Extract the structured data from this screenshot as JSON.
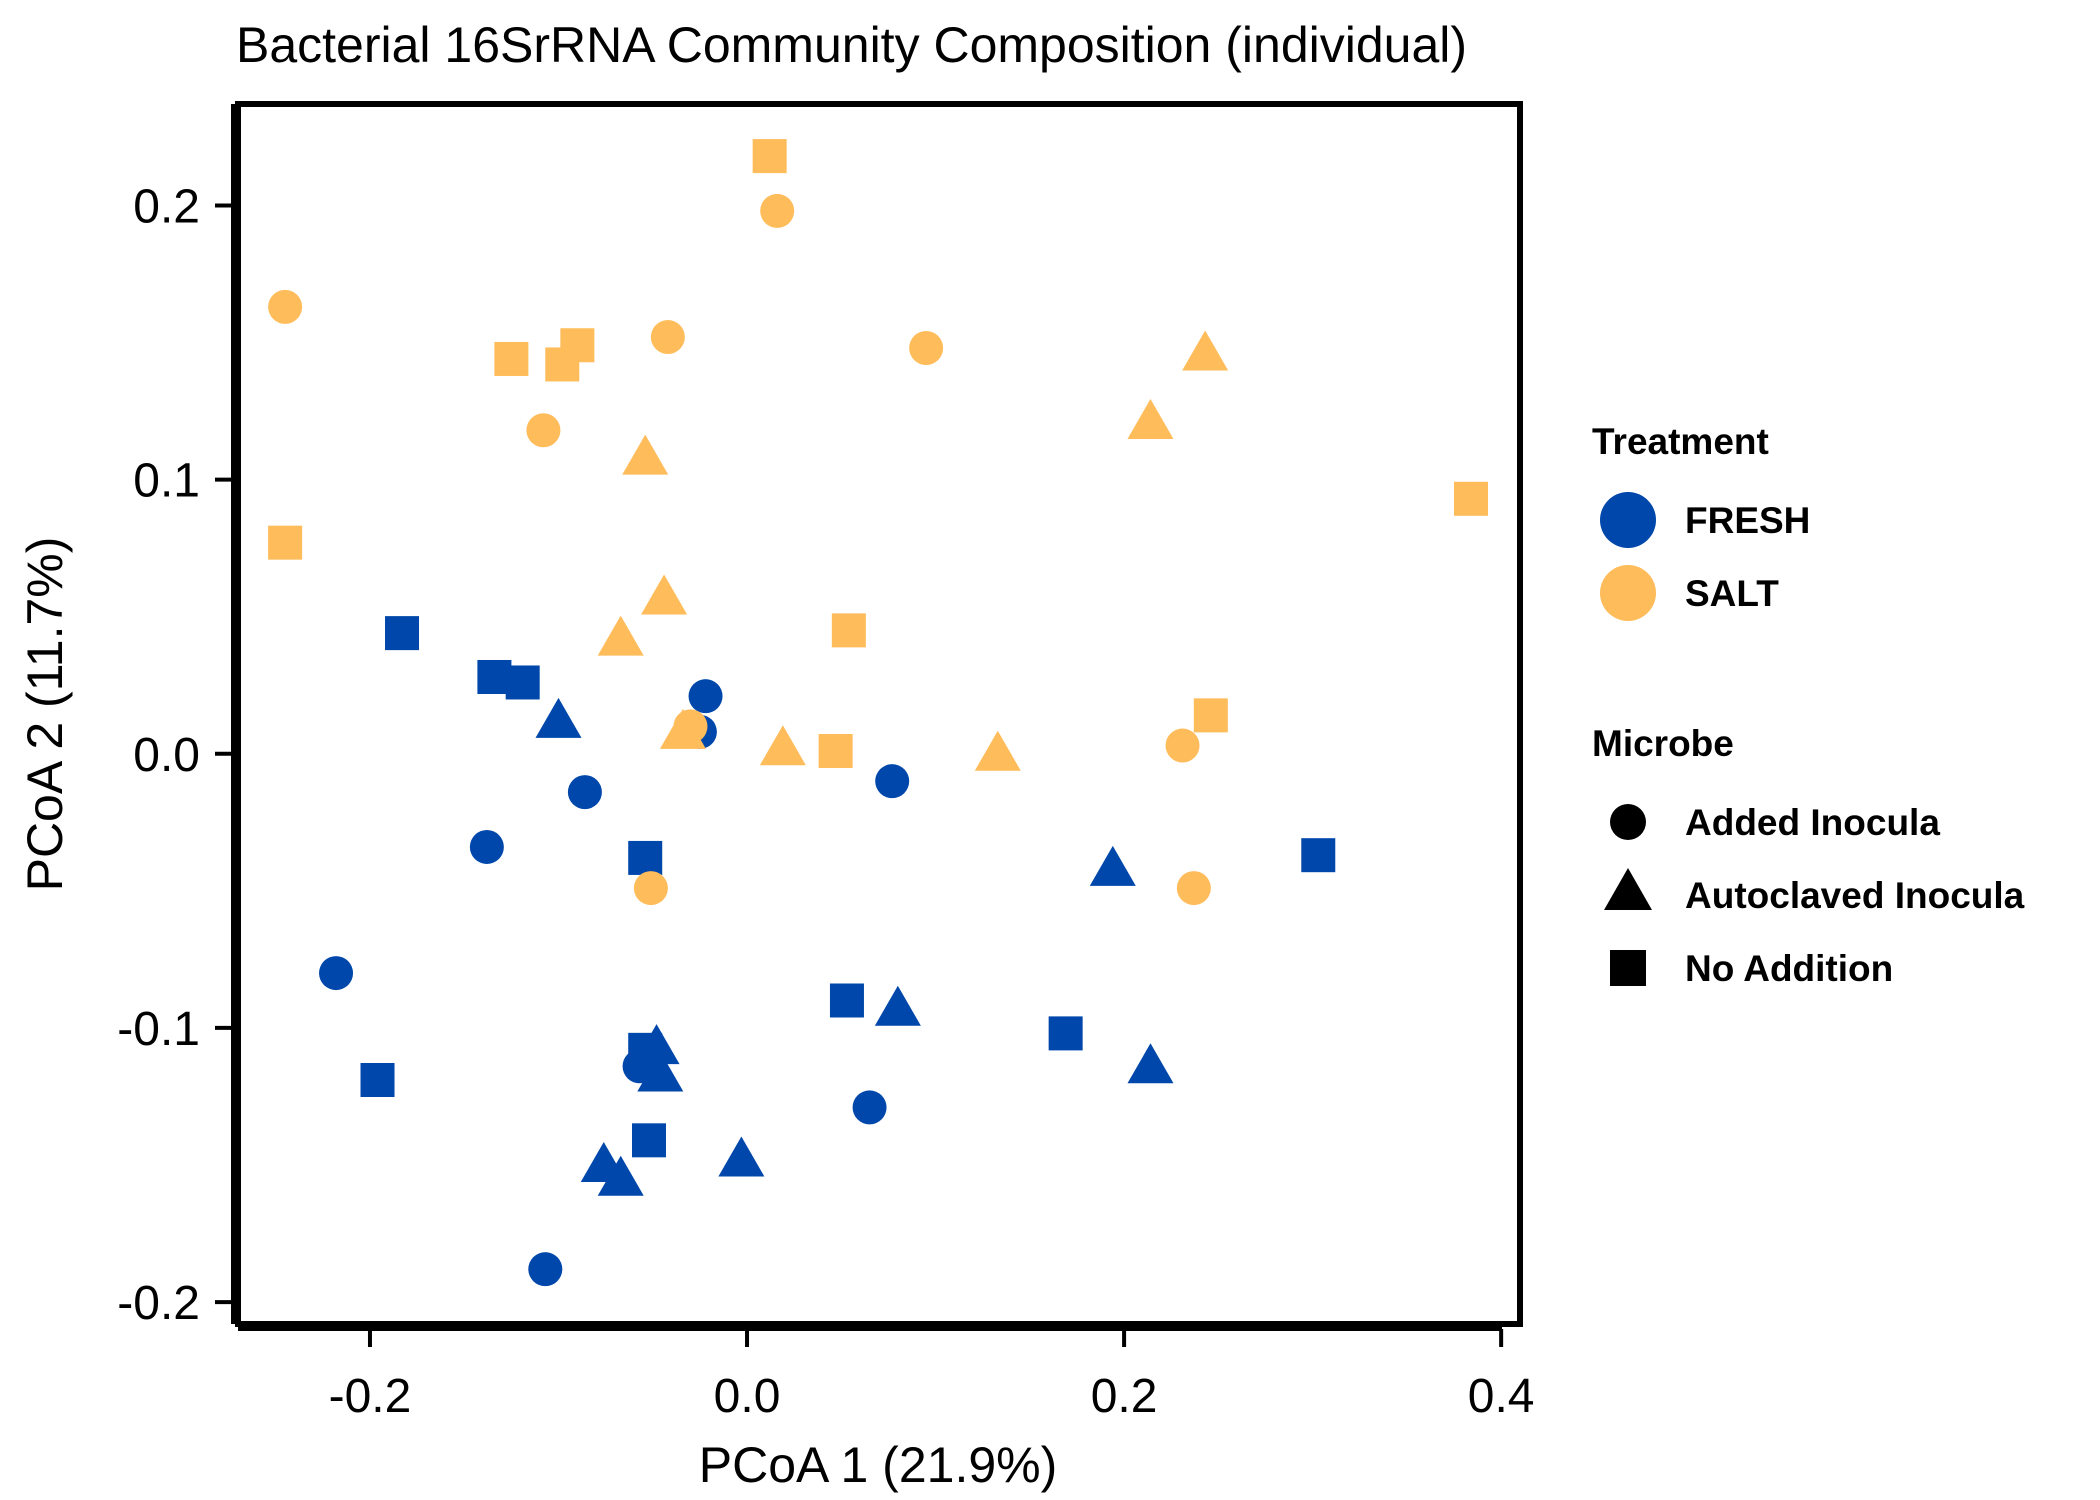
{
  "chart_data": {
    "type": "scatter",
    "title": "Bacterial 16SrRNA Community Composition (individual)",
    "xlabel": "PCoA 1 (21.9%)",
    "ylabel": "PCoA 2 (11.7%)",
    "xlim": [
      -0.27,
      0.41
    ],
    "ylim": [
      -0.208,
      0.237
    ],
    "x_ticks": [
      -0.2,
      0.0,
      0.2,
      0.4
    ],
    "x_tick_labels": [
      "-0.2",
      "0.0",
      "0.2",
      "0.4"
    ],
    "y_ticks": [
      -0.2,
      -0.1,
      0.0,
      0.1,
      0.2
    ],
    "y_tick_labels": [
      "-0.2",
      "-0.1",
      "0.0",
      "0.1",
      "0.2"
    ],
    "grid": false,
    "legend_position": "right",
    "color_legend": {
      "title": "Treatment",
      "entries": [
        {
          "name": "FRESH",
          "color": "#0047ab"
        },
        {
          "name": "SALT",
          "color": "#ffbc5a"
        }
      ]
    },
    "shape_legend": {
      "title": "Microbe",
      "entries": [
        {
          "name": "Added Inocula",
          "shape": "circle"
        },
        {
          "name": "Autoclaved Inocula",
          "shape": "triangle"
        },
        {
          "name": "No Addition",
          "shape": "square"
        }
      ]
    },
    "series": [
      {
        "treatment": "FRESH",
        "microbe": "Added Inocula",
        "color": "#0047ab",
        "shape": "circle",
        "points": [
          [
            -0.218,
            -0.08
          ],
          [
            -0.138,
            -0.034
          ],
          [
            -0.086,
            -0.014
          ],
          [
            -0.022,
            0.021
          ],
          [
            -0.025,
            0.008
          ],
          [
            0.077,
            -0.01
          ],
          [
            -0.057,
            -0.114
          ],
          [
            0.065,
            -0.129
          ],
          [
            -0.107,
            -0.188
          ]
        ]
      },
      {
        "treatment": "FRESH",
        "microbe": "Autoclaved Inocula",
        "color": "#0047ab",
        "shape": "triangle",
        "points": [
          [
            -0.1,
            0.012
          ],
          [
            0.194,
            -0.042
          ],
          [
            0.08,
            -0.093
          ],
          [
            -0.048,
            -0.107
          ],
          [
            -0.046,
            -0.117
          ],
          [
            -0.076,
            -0.15
          ],
          [
            -0.067,
            -0.155
          ],
          [
            -0.003,
            -0.148
          ],
          [
            0.214,
            -0.114
          ]
        ]
      },
      {
        "treatment": "FRESH",
        "microbe": "No Addition",
        "color": "#0047ab",
        "shape": "square",
        "points": [
          [
            -0.183,
            0.044
          ],
          [
            -0.134,
            0.028
          ],
          [
            -0.119,
            0.026
          ],
          [
            -0.054,
            -0.038
          ],
          [
            -0.196,
            -0.119
          ],
          [
            -0.054,
            -0.108
          ],
          [
            -0.052,
            -0.141
          ],
          [
            0.053,
            -0.09
          ],
          [
            0.169,
            -0.102
          ],
          [
            0.303,
            -0.037
          ]
        ]
      },
      {
        "treatment": "SALT",
        "microbe": "Added Inocula",
        "color": "#ffbc5a",
        "shape": "circle",
        "points": [
          [
            -0.245,
            0.163
          ],
          [
            0.016,
            0.198
          ],
          [
            -0.042,
            0.152
          ],
          [
            -0.108,
            0.118
          ],
          [
            0.095,
            0.148
          ],
          [
            -0.03,
            0.01
          ],
          [
            -0.051,
            -0.049
          ],
          [
            0.231,
            0.003
          ],
          [
            0.237,
            -0.049
          ]
        ]
      },
      {
        "treatment": "SALT",
        "microbe": "Autoclaved Inocula",
        "color": "#ffbc5a",
        "shape": "triangle",
        "points": [
          [
            0.243,
            0.146
          ],
          [
            0.214,
            0.121
          ],
          [
            -0.054,
            0.108
          ],
          [
            -0.044,
            0.057
          ],
          [
            -0.067,
            0.042
          ],
          [
            -0.034,
            0.008
          ],
          [
            0.019,
            0.002
          ],
          [
            0.133,
            -0.0
          ]
        ]
      },
      {
        "treatment": "SALT",
        "microbe": "No Addition",
        "color": "#ffbc5a",
        "shape": "square",
        "points": [
          [
            0.012,
            0.218
          ],
          [
            -0.125,
            0.144
          ],
          [
            -0.098,
            0.142
          ],
          [
            -0.09,
            0.149
          ],
          [
            -0.245,
            0.077
          ],
          [
            0.054,
            0.045
          ],
          [
            0.047,
            0.001
          ],
          [
            0.246,
            0.014
          ],
          [
            0.384,
            0.093
          ]
        ]
      }
    ]
  }
}
